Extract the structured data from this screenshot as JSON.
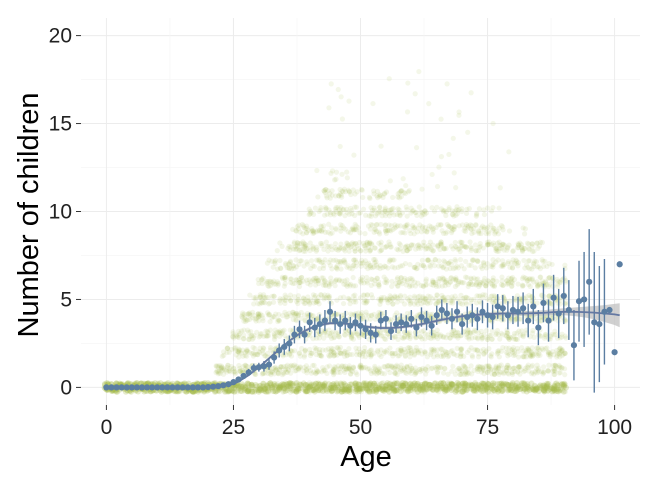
{
  "chart_data": {
    "type": "scatter",
    "title": "",
    "xlabel": "Age",
    "ylabel": "Number of children",
    "xlim": [
      -5,
      105
    ],
    "ylim": [
      -1,
      21
    ],
    "x_ticks": [
      0,
      25,
      50,
      75,
      100
    ],
    "x_tick_labels": [
      "0",
      "25",
      "50",
      "75",
      "100"
    ],
    "y_ticks": [
      0,
      5,
      10,
      15,
      20
    ],
    "y_tick_labels": [
      "0",
      "5",
      "10",
      "15",
      "20"
    ],
    "grid": true,
    "legend": "none",
    "colors": {
      "raw_points": "#a4bb4a",
      "means": "#5b7ea2",
      "smooth_line": "#6478a2",
      "ribbon": "#c0c0c0",
      "grid": "#ececec"
    },
    "series": [
      {
        "kind": "jittered raw observations",
        "note_visible": false,
        "density_profile": {
          "age": [
            0,
            20,
            25,
            30,
            35,
            40,
            45,
            50,
            55,
            60,
            65,
            70,
            75,
            80,
            85,
            90
          ],
          "typical_max": [
            0.3,
            0.3,
            3,
            6,
            8,
            10,
            12,
            11,
            11,
            11,
            10,
            10,
            10,
            9,
            8,
            7
          ]
        }
      },
      {
        "kind": "age means with error bars",
        "x": [
          0,
          1,
          2,
          3,
          4,
          5,
          6,
          7,
          8,
          9,
          10,
          11,
          12,
          13,
          14,
          15,
          16,
          17,
          18,
          19,
          20,
          21,
          22,
          23,
          24,
          25,
          26,
          27,
          28,
          29,
          30,
          31,
          32,
          33,
          34,
          35,
          36,
          37,
          38,
          39,
          40,
          41,
          42,
          43,
          44,
          45,
          46,
          47,
          48,
          49,
          50,
          51,
          52,
          53,
          54,
          55,
          56,
          57,
          58,
          59,
          60,
          61,
          62,
          63,
          64,
          65,
          66,
          67,
          68,
          69,
          70,
          71,
          72,
          73,
          74,
          75,
          76,
          77,
          78,
          79,
          80,
          81,
          82,
          83,
          84,
          85,
          86,
          87,
          88,
          89,
          90,
          91,
          92,
          93,
          94,
          95,
          96,
          97,
          98,
          99,
          100,
          101
        ],
        "y": [
          0,
          0,
          0,
          0,
          0,
          0,
          0,
          0,
          0,
          0,
          0,
          0,
          0,
          0,
          0,
          0,
          0,
          0,
          0,
          0,
          0.02,
          0.04,
          0.07,
          0.12,
          0.18,
          0.3,
          0.45,
          0.65,
          0.85,
          1.1,
          1.15,
          1.2,
          1.3,
          1.7,
          2.1,
          2.3,
          2.5,
          3.0,
          3.3,
          3.0,
          3.7,
          3.4,
          3.6,
          3.8,
          4.3,
          3.8,
          3.6,
          3.8,
          3.5,
          3.7,
          3.5,
          3.3,
          3.1,
          3.0,
          3.8,
          3.9,
          3.2,
          3.6,
          3.7,
          3.6,
          3.9,
          3.4,
          4.0,
          3.8,
          3.5,
          4.1,
          4.4,
          4.2,
          3.9,
          4.3,
          3.6,
          4.0,
          4.1,
          3.9,
          4.3,
          4.1,
          4.0,
          4.6,
          4.5,
          4.1,
          4.4,
          4.3,
          4.5,
          3.8,
          4.6,
          3.4,
          4.8,
          3.8,
          5.1,
          4.2,
          5.2,
          4.4,
          2.4,
          4.9,
          5.0,
          6.0,
          3.7,
          3.6,
          4.3,
          4.4,
          2.0,
          7.0
        ],
        "err": [
          0,
          0,
          0,
          0,
          0,
          0,
          0,
          0,
          0,
          0,
          0,
          0,
          0,
          0,
          0,
          0,
          0,
          0,
          0,
          0,
          0.03,
          0.03,
          0.04,
          0.05,
          0.06,
          0.08,
          0.1,
          0.15,
          0.2,
          0.25,
          0.25,
          0.3,
          0.3,
          0.35,
          0.4,
          0.45,
          0.45,
          0.5,
          0.5,
          0.5,
          0.55,
          0.55,
          0.55,
          0.6,
          0.6,
          0.55,
          0.55,
          0.55,
          0.5,
          0.5,
          0.55,
          0.55,
          0.55,
          0.5,
          0.5,
          0.5,
          0.5,
          0.5,
          0.5,
          0.5,
          0.5,
          0.5,
          0.55,
          0.55,
          0.55,
          0.55,
          0.6,
          0.6,
          0.6,
          0.6,
          0.6,
          0.6,
          0.65,
          0.65,
          0.65,
          0.7,
          0.7,
          0.7,
          0.75,
          0.8,
          0.8,
          0.85,
          0.9,
          0.95,
          1.0,
          1.0,
          1.1,
          1.2,
          1.3,
          1.4,
          1.6,
          1.7,
          2.0,
          2.3,
          2.7,
          3.0,
          4.0,
          3.3,
          3.0,
          0,
          0,
          0
        ]
      },
      {
        "kind": "smoothed trend with confidence band",
        "x": [
          0,
          5,
          10,
          15,
          20,
          22,
          24,
          25,
          26,
          28,
          30,
          32,
          34,
          36,
          38,
          40,
          42,
          44,
          46,
          48,
          50,
          52,
          54,
          56,
          58,
          60,
          62,
          64,
          66,
          68,
          70,
          72,
          74,
          76,
          78,
          80,
          82,
          84,
          86,
          88,
          90,
          92,
          94,
          96,
          98,
          100,
          101
        ],
        "y": [
          0,
          0,
          0,
          0,
          0.02,
          0.05,
          0.12,
          0.2,
          0.33,
          0.7,
          1.15,
          1.65,
          2.15,
          2.65,
          3.05,
          3.35,
          3.55,
          3.65,
          3.65,
          3.6,
          3.5,
          3.42,
          3.38,
          3.38,
          3.42,
          3.5,
          3.6,
          3.72,
          3.85,
          3.95,
          4.05,
          4.1,
          4.15,
          4.18,
          4.2,
          4.2,
          4.2,
          4.22,
          4.24,
          4.28,
          4.3,
          4.3,
          4.28,
          4.25,
          4.2,
          4.15,
          4.1
        ],
        "se": [
          0,
          0,
          0,
          0,
          0.02,
          0.02,
          0.03,
          0.03,
          0.04,
          0.05,
          0.06,
          0.07,
          0.08,
          0.08,
          0.09,
          0.09,
          0.09,
          0.09,
          0.09,
          0.09,
          0.09,
          0.09,
          0.09,
          0.09,
          0.09,
          0.09,
          0.09,
          0.09,
          0.1,
          0.1,
          0.1,
          0.1,
          0.1,
          0.1,
          0.11,
          0.12,
          0.13,
          0.14,
          0.15,
          0.17,
          0.2,
          0.24,
          0.3,
          0.38,
          0.48,
          0.6,
          0.68
        ]
      }
    ]
  }
}
